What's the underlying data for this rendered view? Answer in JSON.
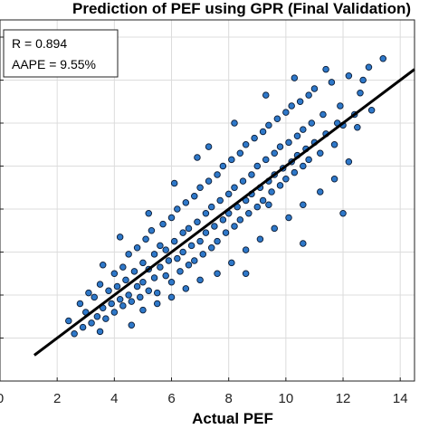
{
  "chart_data": {
    "type": "scatter",
    "title": "Prediction of PEF using GPR (Final Validation)",
    "xlabel": "Actual PEF",
    "ylabel": "",
    "xlim": [
      0,
      14.5
    ],
    "ylim": [
      0,
      16.8
    ],
    "xticks": [
      0,
      2,
      4,
      6,
      8,
      10,
      12,
      14
    ],
    "grid": true,
    "annotation": {
      "line1": "R = 0.894",
      "line2": "AAPE = 9.55%"
    },
    "reference_line": {
      "label": "",
      "slope": 1,
      "intercept": 0
    },
    "marker_color": "#2e78c9",
    "marker_edge_color": "#0a1a33",
    "series": [
      {
        "name": "",
        "approx_count": 2600,
        "x_range": [
          2.4,
          13.4
        ],
        "y_trend": "y ≈ x",
        "points": [
          [
            2.4,
            2.8
          ],
          [
            2.6,
            2.2
          ],
          [
            2.8,
            3.6
          ],
          [
            2.9,
            2.5
          ],
          [
            3.0,
            3.2
          ],
          [
            3.1,
            4.1
          ],
          [
            3.2,
            2.7
          ],
          [
            3.3,
            3.9
          ],
          [
            3.4,
            3.0
          ],
          [
            3.5,
            4.5
          ],
          [
            3.6,
            3.4
          ],
          [
            3.7,
            2.9
          ],
          [
            3.8,
            4.2
          ],
          [
            3.9,
            3.6
          ],
          [
            4.0,
            5.0
          ],
          [
            4.0,
            3.2
          ],
          [
            4.1,
            4.4
          ],
          [
            4.2,
            3.8
          ],
          [
            4.3,
            5.3
          ],
          [
            4.3,
            3.5
          ],
          [
            4.4,
            4.7
          ],
          [
            4.5,
            4.0
          ],
          [
            4.5,
            5.9
          ],
          [
            4.6,
            3.7
          ],
          [
            4.7,
            5.1
          ],
          [
            4.8,
            4.4
          ],
          [
            4.8,
            6.2
          ],
          [
            4.9,
            3.9
          ],
          [
            5.0,
            5.5
          ],
          [
            5.0,
            4.6
          ],
          [
            5.1,
            6.6
          ],
          [
            5.2,
            4.2
          ],
          [
            5.2,
            5.2
          ],
          [
            5.3,
            7.0
          ],
          [
            5.4,
            4.8
          ],
          [
            5.4,
            5.9
          ],
          [
            5.5,
            4.1
          ],
          [
            5.6,
            6.3
          ],
          [
            5.6,
            5.3
          ],
          [
            5.7,
            7.3
          ],
          [
            5.8,
            4.9
          ],
          [
            5.8,
            6.1
          ],
          [
            5.9,
            5.6
          ],
          [
            6.0,
            7.6
          ],
          [
            6.0,
            4.6
          ],
          [
            6.1,
            6.5
          ],
          [
            6.2,
            5.7
          ],
          [
            6.2,
            8.0
          ],
          [
            6.3,
            5.1
          ],
          [
            6.4,
            6.9
          ],
          [
            6.4,
            6.0
          ],
          [
            6.5,
            8.3
          ],
          [
            6.6,
            5.4
          ],
          [
            6.6,
            7.1
          ],
          [
            6.7,
            6.3
          ],
          [
            6.8,
            8.6
          ],
          [
            6.8,
            5.6
          ],
          [
            6.9,
            7.4
          ],
          [
            7.0,
            6.5
          ],
          [
            7.0,
            9.0
          ],
          [
            7.1,
            5.9
          ],
          [
            7.2,
            7.8
          ],
          [
            7.2,
            6.9
          ],
          [
            7.3,
            9.3
          ],
          [
            7.4,
            6.2
          ],
          [
            7.4,
            8.1
          ],
          [
            7.5,
            7.2
          ],
          [
            7.6,
            9.6
          ],
          [
            7.6,
            6.5
          ],
          [
            7.7,
            8.4
          ],
          [
            7.8,
            7.5
          ],
          [
            7.8,
            10.0
          ],
          [
            7.9,
            6.9
          ],
          [
            8.0,
            8.7
          ],
          [
            8.0,
            7.8
          ],
          [
            8.1,
            10.3
          ],
          [
            8.2,
            7.2
          ],
          [
            8.2,
            9.0
          ],
          [
            8.3,
            8.1
          ],
          [
            8.4,
            10.6
          ],
          [
            8.4,
            7.5
          ],
          [
            8.5,
            9.3
          ],
          [
            8.6,
            8.4
          ],
          [
            8.6,
            11.0
          ],
          [
            8.7,
            7.8
          ],
          [
            8.8,
            9.6
          ],
          [
            8.8,
            8.7
          ],
          [
            8.9,
            11.3
          ],
          [
            9.0,
            8.1
          ],
          [
            9.0,
            10.0
          ],
          [
            9.1,
            9.0
          ],
          [
            9.2,
            11.6
          ],
          [
            9.2,
            8.4
          ],
          [
            9.3,
            10.3
          ],
          [
            9.4,
            9.3
          ],
          [
            9.4,
            11.9
          ],
          [
            9.5,
            8.8
          ],
          [
            9.6,
            10.6
          ],
          [
            9.6,
            9.6
          ],
          [
            9.7,
            12.2
          ],
          [
            9.8,
            9.1
          ],
          [
            9.8,
            10.9
          ],
          [
            9.9,
            9.9
          ],
          [
            10.0,
            12.5
          ],
          [
            10.0,
            9.4
          ],
          [
            10.1,
            11.1
          ],
          [
            10.2,
            10.2
          ],
          [
            10.2,
            12.8
          ],
          [
            10.3,
            9.7
          ],
          [
            10.4,
            11.4
          ],
          [
            10.4,
            10.5
          ],
          [
            10.5,
            13.0
          ],
          [
            10.6,
            10.0
          ],
          [
            10.6,
            11.7
          ],
          [
            10.7,
            10.8
          ],
          [
            10.8,
            13.3
          ],
          [
            10.8,
            10.3
          ],
          [
            10.9,
            12.0
          ],
          [
            11.0,
            11.1
          ],
          [
            11.0,
            13.6
          ],
          [
            11.2,
            10.6
          ],
          [
            11.3,
            12.4
          ],
          [
            11.4,
            11.5
          ],
          [
            11.6,
            13.9
          ],
          [
            11.7,
            11.0
          ],
          [
            11.9,
            12.8
          ],
          [
            12.0,
            11.9
          ],
          [
            12.2,
            14.2
          ],
          [
            12.4,
            12.4
          ],
          [
            12.6,
            13.4
          ],
          [
            12.9,
            14.6
          ],
          [
            13.4,
            15.0
          ],
          [
            3.5,
            2.3
          ],
          [
            4.6,
            2.6
          ],
          [
            5.0,
            3.3
          ],
          [
            5.5,
            3.6
          ],
          [
            6.0,
            3.9
          ],
          [
            6.5,
            4.3
          ],
          [
            7.0,
            4.7
          ],
          [
            7.6,
            5.0
          ],
          [
            8.1,
            5.5
          ],
          [
            8.6,
            6.1
          ],
          [
            9.1,
            6.6
          ],
          [
            9.6,
            7.1
          ],
          [
            10.1,
            7.6
          ],
          [
            10.6,
            8.2
          ],
          [
            11.2,
            8.8
          ],
          [
            11.7,
            9.4
          ],
          [
            12.2,
            10.2
          ],
          [
            12.0,
            7.8
          ],
          [
            10.6,
            6.4
          ],
          [
            8.6,
            5.0
          ],
          [
            9.4,
            8.2
          ],
          [
            7.3,
            10.9
          ],
          [
            6.1,
            9.2
          ],
          [
            5.2,
            7.8
          ],
          [
            4.2,
            6.7
          ],
          [
            3.6,
            5.4
          ],
          [
            6.9,
            10.4
          ],
          [
            8.2,
            12.0
          ],
          [
            9.3,
            13.3
          ],
          [
            10.3,
            14.1
          ],
          [
            11.4,
            14.5
          ],
          [
            12.7,
            14.0
          ],
          [
            13.0,
            12.6
          ],
          [
            12.5,
            11.8
          ],
          [
            11.8,
            12.0
          ]
        ]
      }
    ]
  }
}
